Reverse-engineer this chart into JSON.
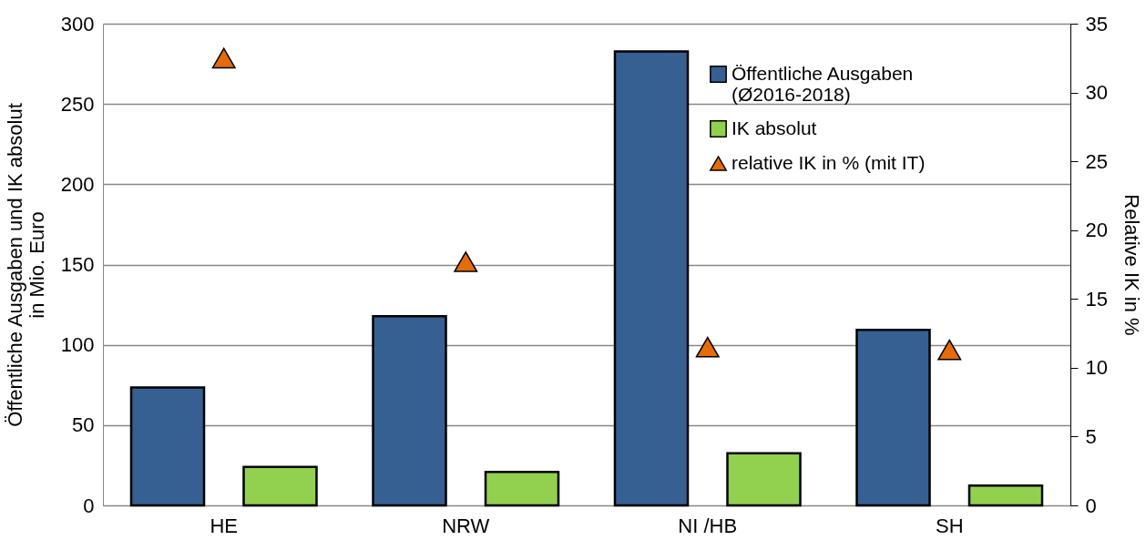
{
  "chart_data": {
    "type": "bar",
    "categories": [
      "HE",
      "NRW",
      "NI /HB",
      "SH"
    ],
    "ylabel": "Öffentliche Ausgaben und IK absolut\nin Mio. Euro",
    "y2label": "Relative IK in %",
    "series": [
      {
        "name": "Öffentliche Ausgaben\n(Ø2016-2018)",
        "color": "#376092",
        "values": [
          73.5,
          117.8,
          282.7,
          109.3
        ]
      },
      {
        "name": "IK absolut",
        "color": "#92d050",
        "values": [
          23.9,
          20.9,
          32.5,
          12.4
        ]
      },
      {
        "name": "relative IK in % (mit IT)",
        "type": "scatter",
        "axis": "y2",
        "marker": "triangle",
        "color": "#e46c0a",
        "values": [
          32.5,
          17.7,
          11.5,
          11.3
        ]
      }
    ],
    "ylim": [
      0,
      300
    ],
    "yticks": [
      0,
      50,
      100,
      150,
      200,
      250,
      300
    ],
    "y2lim": [
      0,
      35
    ],
    "y2ticks": [
      0,
      5,
      10,
      15,
      20,
      25,
      30,
      35
    ],
    "grid": "y",
    "legend": "top right"
  }
}
